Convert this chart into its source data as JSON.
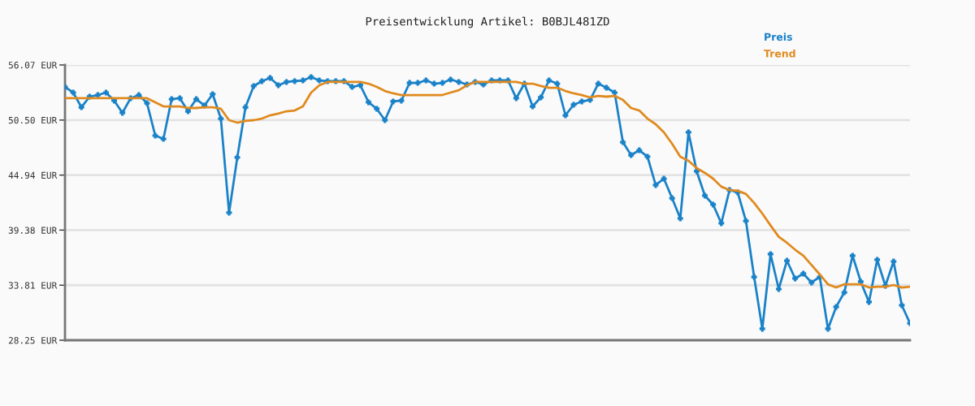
{
  "chart_data": {
    "type": "line",
    "title": "Preisentwicklung Artikel: B0BJL481ZD",
    "categories": [
      null,
      null,
      null,
      null,
      null,
      null,
      null,
      null,
      null,
      null,
      null,
      null,
      null,
      null,
      null,
      null,
      null,
      null,
      null,
      null,
      null,
      null,
      null,
      null,
      null,
      null,
      null,
      null,
      null,
      null,
      null,
      null,
      null,
      null,
      null,
      null,
      null,
      null,
      null,
      null,
      null,
      null,
      null,
      null,
      null,
      null,
      null,
      null,
      null,
      null,
      null,
      null,
      null,
      null,
      null,
      null,
      null,
      null,
      null,
      null,
      null,
      null,
      null,
      null,
      null,
      null,
      null,
      null,
      null,
      null,
      null,
      null,
      null,
      null,
      null,
      null,
      null,
      null,
      null,
      null,
      null,
      null,
      null,
      null,
      null,
      null,
      null,
      null,
      null,
      null,
      null,
      null,
      null,
      null,
      null,
      null,
      null,
      null,
      null,
      null,
      null,
      null,
      null,
      null
    ],
    "series": [
      {
        "name": "Preis",
        "color": "#1a82c8",
        "marker": "cross",
        "values": [
          53.85,
          53.28,
          51.8,
          52.87,
          53.03,
          53.28,
          52.46,
          51.23,
          52.71,
          53.03,
          52.21,
          48.93,
          48.6,
          52.62,
          52.71,
          51.39,
          52.62,
          51.97,
          53.12,
          50.65,
          41.14,
          46.72,
          51.8,
          53.94,
          54.43,
          54.76,
          54.02,
          54.35,
          54.43,
          54.51,
          54.84,
          54.51,
          54.43,
          54.43,
          54.43,
          53.85,
          54.02,
          52.3,
          51.64,
          50.49,
          52.38,
          52.46,
          54.26,
          54.26,
          54.51,
          54.18,
          54.26,
          54.59,
          54.35,
          54.1,
          54.35,
          54.1,
          54.51,
          54.51,
          54.51,
          52.71,
          54.18,
          51.88,
          52.79,
          54.51,
          54.18,
          50.98,
          52.05,
          52.38,
          52.54,
          54.18,
          53.77,
          53.28,
          48.27,
          46.96,
          47.45,
          46.8,
          43.93,
          44.58,
          42.61,
          40.56,
          49.26,
          45.32,
          42.86,
          41.96,
          40.07,
          43.43,
          43.19,
          40.31,
          34.65,
          29.4,
          36.95,
          33.42,
          36.29,
          34.49,
          34.98,
          34.08,
          34.65,
          29.4,
          31.62,
          33.09,
          36.79,
          34.16,
          32.11,
          36.38,
          33.75,
          36.21,
          31.78,
          29.97
        ]
      },
      {
        "name": "Trend",
        "color": "#e08a1e",
        "marker": "none",
        "values": [
          52.71,
          52.71,
          52.71,
          52.71,
          52.71,
          52.71,
          52.71,
          52.71,
          52.71,
          52.71,
          52.71,
          52.3,
          51.88,
          51.88,
          51.88,
          51.72,
          51.72,
          51.8,
          51.8,
          51.64,
          50.49,
          50.24,
          50.41,
          50.49,
          50.65,
          50.98,
          51.15,
          51.39,
          51.47,
          51.88,
          53.28,
          54.02,
          54.35,
          54.35,
          54.35,
          54.35,
          54.35,
          54.18,
          53.85,
          53.44,
          53.2,
          53.03,
          53.03,
          53.03,
          53.03,
          53.03,
          53.03,
          53.28,
          53.52,
          54.02,
          54.35,
          54.35,
          54.35,
          54.35,
          54.35,
          54.35,
          54.18,
          54.18,
          53.94,
          53.77,
          53.77,
          53.44,
          53.2,
          53.03,
          52.79,
          52.95,
          52.87,
          52.95,
          52.54,
          51.72,
          51.47,
          50.65,
          50.08,
          49.26,
          48.11,
          46.8,
          46.39,
          45.65,
          45.16,
          44.58,
          43.77,
          43.43,
          43.36,
          43.03,
          42.13,
          41.05,
          39.85,
          38.7,
          38.1,
          37.4,
          36.8,
          35.85,
          34.9,
          33.9,
          33.58,
          33.9,
          33.9,
          33.9,
          33.58,
          33.66,
          33.66,
          33.83,
          33.58,
          33.66
        ]
      }
    ],
    "ylim": [
      28.25,
      56.07
    ],
    "yticks": [
      {
        "value": 28.25,
        "label": "28.25 EUR"
      },
      {
        "value": 33.81,
        "label": "33.81 EUR"
      },
      {
        "value": 39.38,
        "label": "39.38 EUR"
      },
      {
        "value": 44.94,
        "label": "44.94 EUR"
      },
      {
        "value": 50.5,
        "label": "50.50 EUR"
      },
      {
        "value": 56.07,
        "label": "56.07 EUR"
      }
    ],
    "grid": "y",
    "legend": "top right",
    "line_style": "solid"
  }
}
